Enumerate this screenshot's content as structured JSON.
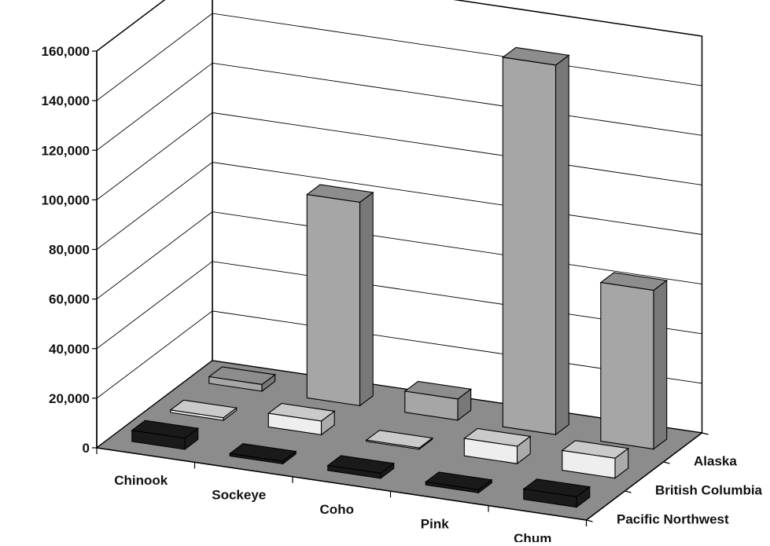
{
  "chart_data": {
    "type": "bar",
    "categories": [
      "Chinook",
      "Sockeye",
      "Coho",
      "Pink",
      "Chum"
    ],
    "series": [
      {
        "name": "Pacific Northwest",
        "values": [
          4500,
          1000,
          2000,
          1200,
          4200
        ]
      },
      {
        "name": "British Columbia",
        "values": [
          1000,
          5500,
          500,
          7000,
          8000
        ]
      },
      {
        "name": "Alaska",
        "values": [
          2700,
          82000,
          8500,
          149000,
          64000
        ]
      }
    ],
    "y_ticks": [
      "0",
      "20,000",
      "40,000",
      "60,000",
      "80,000",
      "100,000",
      "120,000",
      "140,000",
      "160,000"
    ],
    "ylim": [
      0,
      160000
    ],
    "grid": true,
    "legend_position": "right, along depth axis",
    "colors": {
      "Pacific Northwest": "#1a1a1a",
      "British Columbia": "#eeeeee",
      "Alaska": "#a6a6a6",
      "floor": "#8c8c8c"
    }
  }
}
